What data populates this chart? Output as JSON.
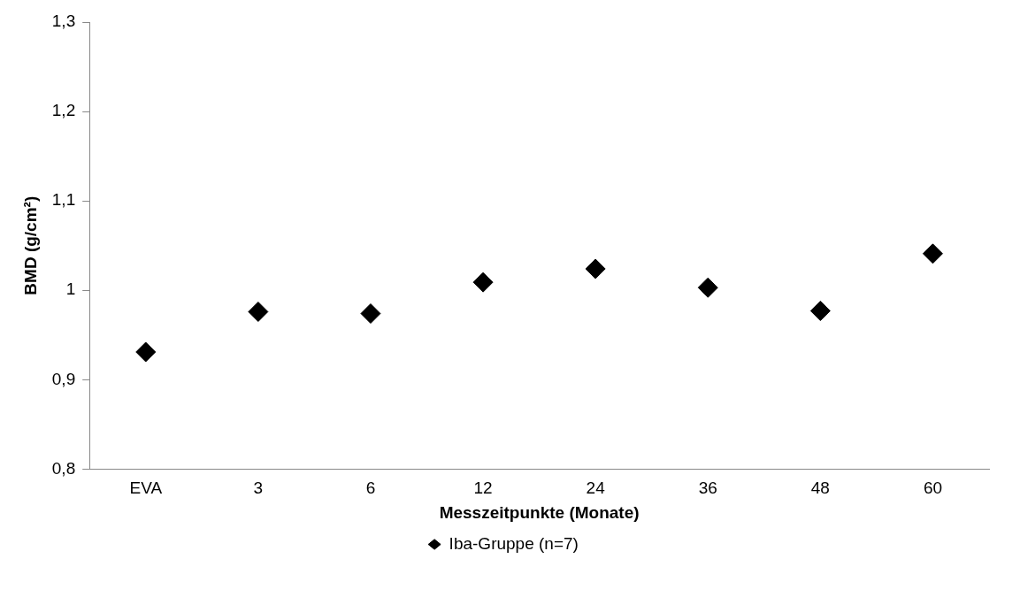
{
  "chart_data": {
    "type": "scatter",
    "xlabel": "Messzeitpunkte (Monate)",
    "ylabel": "BMD (g/cm²)",
    "categories": [
      "EVA",
      "3",
      "6",
      "12",
      "24",
      "36",
      "48",
      "60"
    ],
    "series": [
      {
        "name": "Iba-Gruppe (n=7)",
        "color": "#000000",
        "values": [
          0.931,
          0.976,
          0.974,
          1.009,
          1.024,
          1.003,
          0.977,
          1.041
        ]
      }
    ],
    "ylim": [
      0.8,
      1.3
    ],
    "yticks": [
      {
        "value": 0.8,
        "label": "0,8"
      },
      {
        "value": 0.9,
        "label": "0,9"
      },
      {
        "value": 1.0,
        "label": "1"
      },
      {
        "value": 1.1,
        "label": "1,1"
      },
      {
        "value": 1.2,
        "label": "1,2"
      },
      {
        "value": 1.3,
        "label": "1,3"
      }
    ],
    "grid": false,
    "legend": "bottom",
    "marker": "diamond"
  }
}
